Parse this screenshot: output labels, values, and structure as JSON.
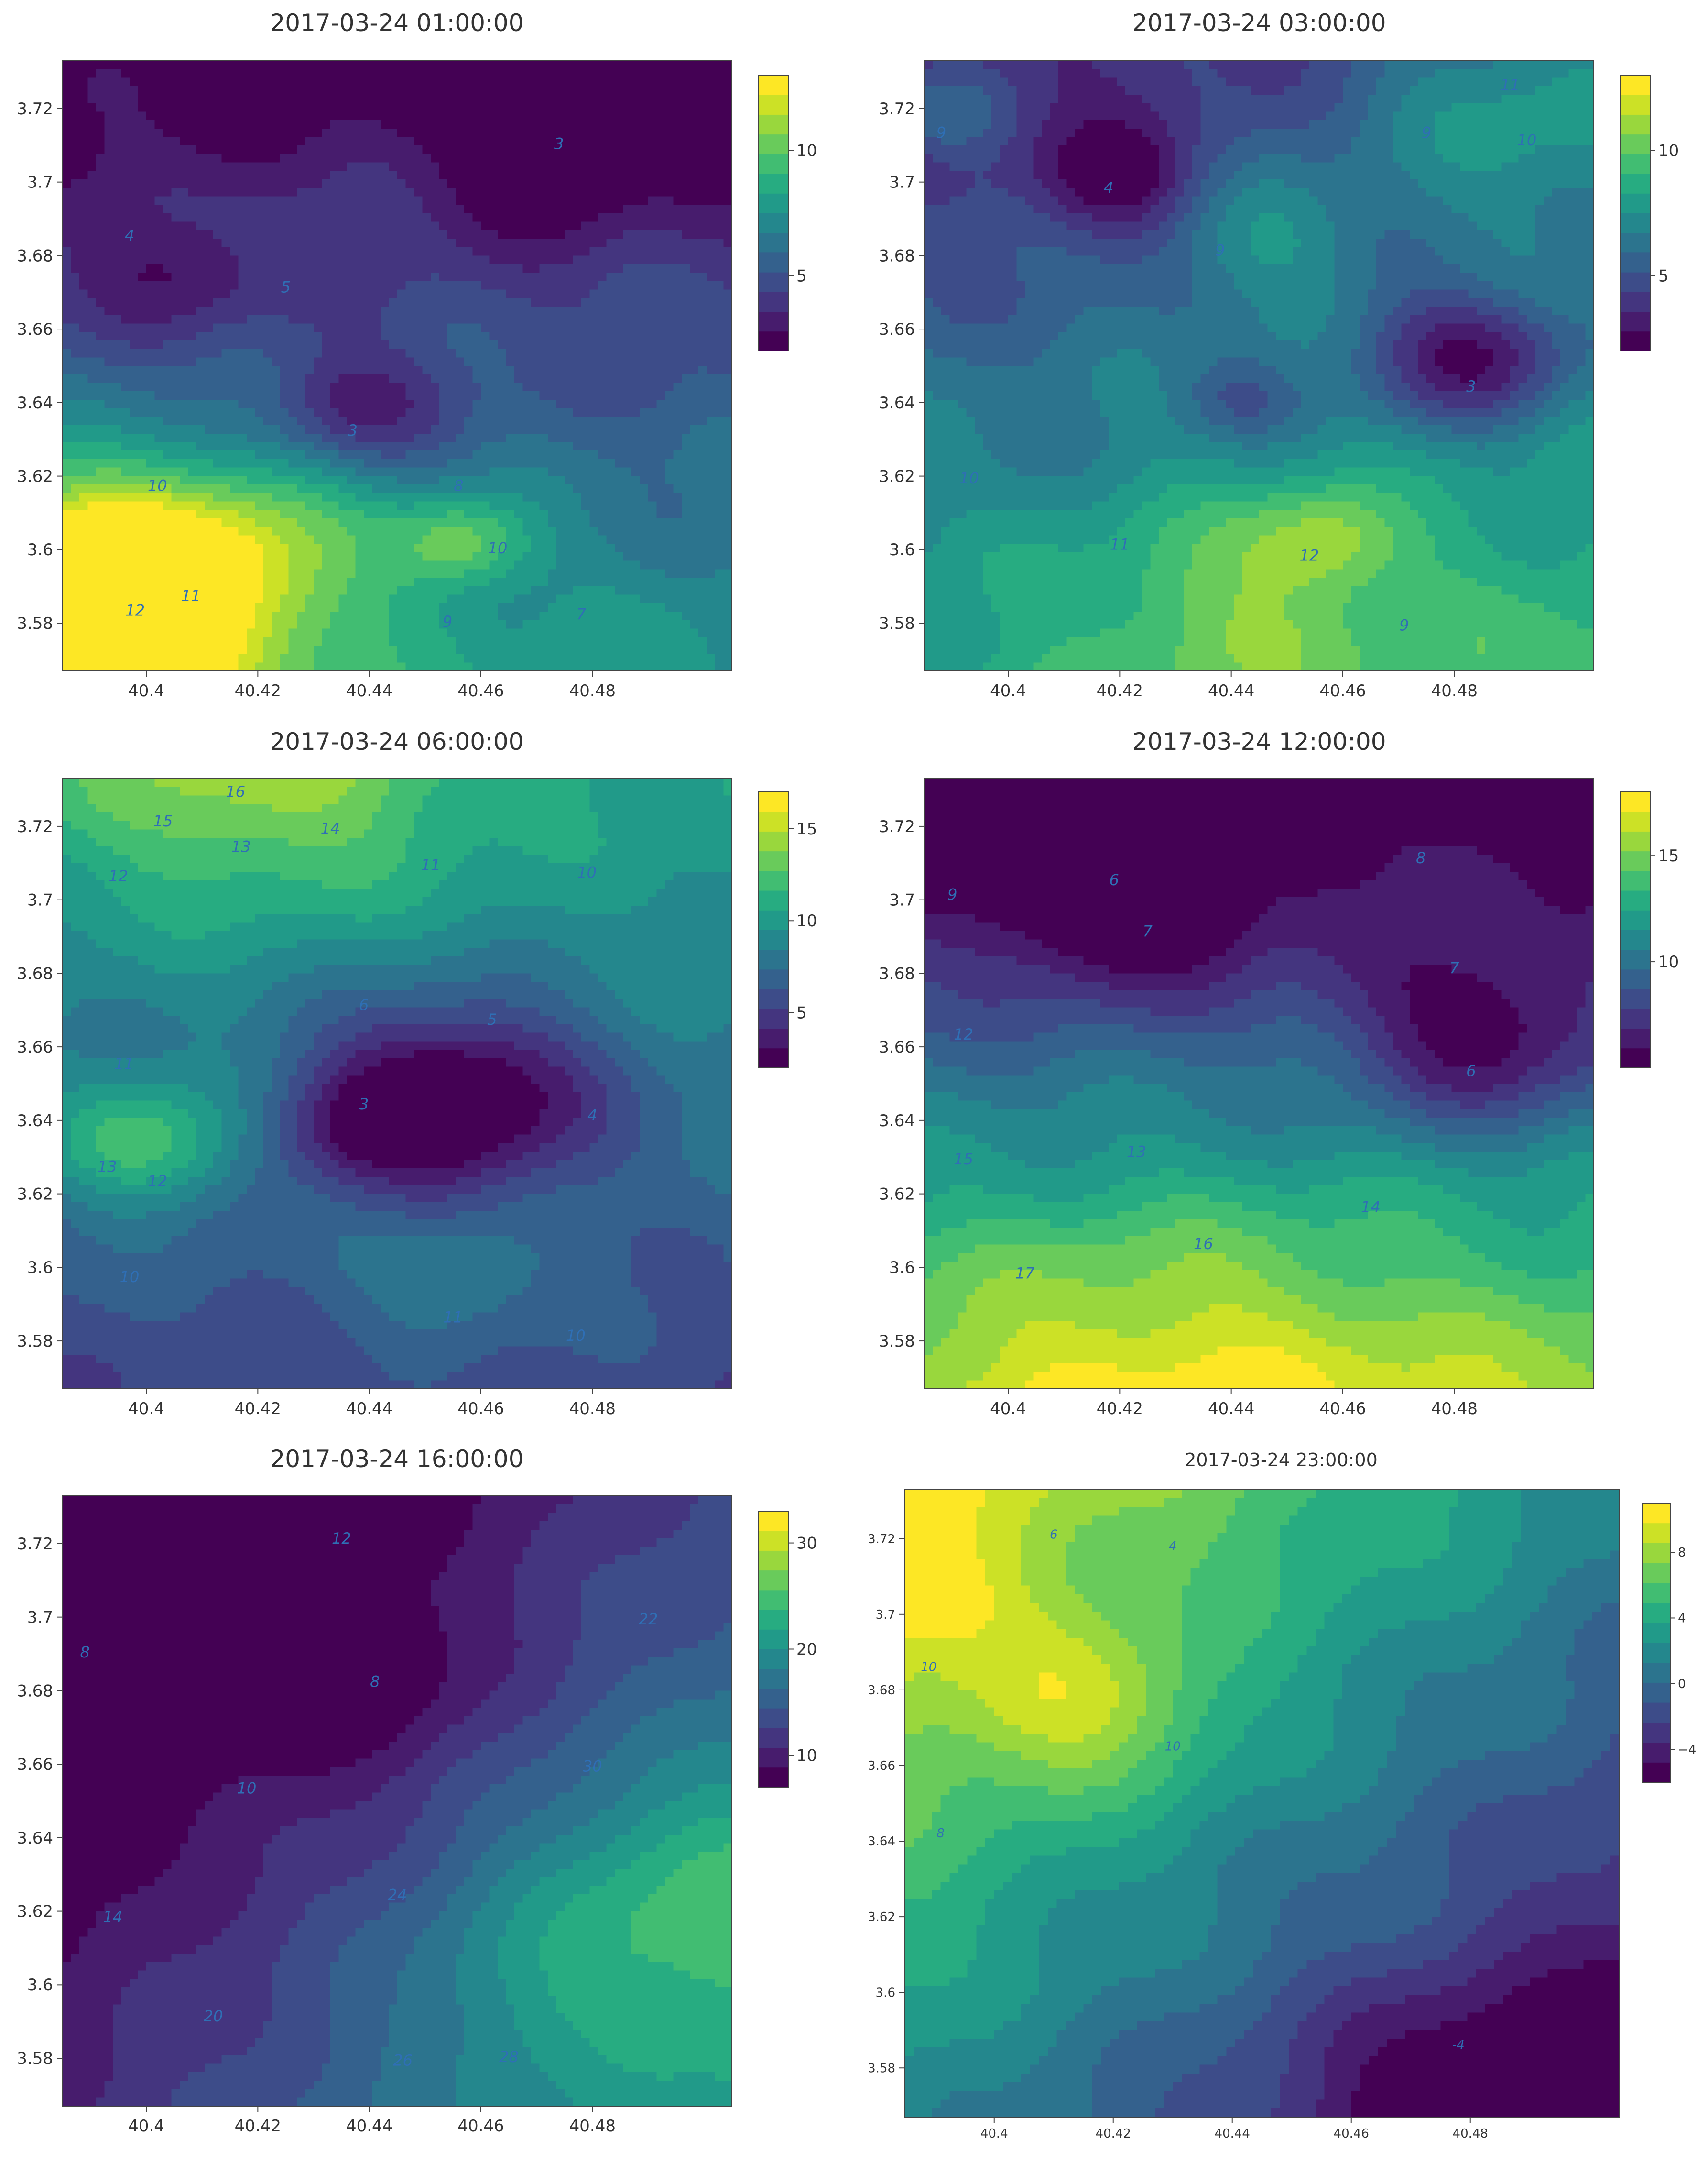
{
  "colormap": [
    "#440154",
    "#482475",
    "#414487",
    "#355f8d",
    "#2a788e",
    "#21918c",
    "#22a884",
    "#44bf70",
    "#7ad151",
    "#bddf26",
    "#fde725"
  ],
  "chart_data": [
    {
      "type": "contour",
      "title": "2017-03-24 01:00:00",
      "xlim": [
        40.385,
        40.505
      ],
      "ylim": [
        3.567,
        3.733
      ],
      "xticks": [
        40.4,
        40.42,
        40.44,
        40.46,
        40.48
      ],
      "yticks": [
        3.58,
        3.6,
        3.62,
        3.64,
        3.66,
        3.68,
        3.7,
        3.72
      ],
      "colorbar": {
        "min": 2,
        "max": 13,
        "ticks": [
          5,
          10
        ]
      },
      "base": 5.0,
      "ygrad": -35,
      "xgrad": 0,
      "features": [
        {
          "x": 40.386,
          "y": 3.585,
          "amp": 8.5,
          "s": 0.025
        },
        {
          "x": 40.457,
          "y": 3.602,
          "amp": 3.5,
          "s": 0.009
        },
        {
          "x": 40.415,
          "y": 3.6,
          "amp": 3.0,
          "s": 0.02
        },
        {
          "x": 40.473,
          "y": 3.706,
          "amp": -2.5,
          "s": 0.012
        },
        {
          "x": 40.437,
          "y": 3.638,
          "amp": -2.3,
          "s": 0.011
        },
        {
          "x": 40.408,
          "y": 3.676,
          "amp": -1.5,
          "s": 0.012
        },
        {
          "x": 40.425,
          "y": 3.683,
          "amp": 1.0,
          "s": 0.01
        }
      ],
      "labels": [
        {
          "x": 40.474,
          "y": 3.709,
          "text": "3"
        },
        {
          "x": 40.437,
          "y": 3.631,
          "text": "3"
        },
        {
          "x": 40.397,
          "y": 3.684,
          "text": "4"
        },
        {
          "x": 40.425,
          "y": 3.67,
          "text": "5"
        },
        {
          "x": 40.402,
          "y": 3.616,
          "text": "10"
        },
        {
          "x": 40.456,
          "y": 3.616,
          "text": "8"
        },
        {
          "x": 40.463,
          "y": 3.599,
          "text": "10"
        },
        {
          "x": 40.408,
          "y": 3.586,
          "text": "11"
        },
        {
          "x": 40.398,
          "y": 3.582,
          "text": "12"
        },
        {
          "x": 40.454,
          "y": 3.579,
          "text": "9"
        },
        {
          "x": 40.478,
          "y": 3.581,
          "text": "7"
        }
      ]
    },
    {
      "type": "contour",
      "title": "2017-03-24 03:00:00",
      "xlim": [
        40.385,
        40.505
      ],
      "ylim": [
        3.567,
        3.733
      ],
      "xticks": [
        40.4,
        40.42,
        40.44,
        40.46,
        40.48
      ],
      "yticks": [
        3.58,
        3.6,
        3.62,
        3.64,
        3.66,
        3.68,
        3.7,
        3.72
      ],
      "colorbar": {
        "min": 2,
        "max": 13,
        "ticks": [
          5,
          10
        ]
      },
      "base": 6.5,
      "ygrad": -30,
      "xgrad": 10,
      "features": [
        {
          "x": 40.457,
          "y": 3.603,
          "amp": 2.5,
          "s": 0.01
        },
        {
          "x": 40.44,
          "y": 3.586,
          "amp": 2.0,
          "s": 0.02
        },
        {
          "x": 40.483,
          "y": 3.652,
          "amp": -4.0,
          "s": 0.013
        },
        {
          "x": 40.419,
          "y": 3.7,
          "amp": -3.0,
          "s": 0.011
        },
        {
          "x": 40.442,
          "y": 3.641,
          "amp": -1.5,
          "s": 0.007
        },
        {
          "x": 40.445,
          "y": 3.685,
          "amp": 2.0,
          "s": 0.013
        },
        {
          "x": 40.388,
          "y": 3.718,
          "amp": 2.0,
          "s": 0.008
        },
        {
          "x": 40.495,
          "y": 3.725,
          "amp": 3.0,
          "s": 0.025
        }
      ],
      "labels": [
        {
          "x": 40.418,
          "y": 3.697,
          "text": "4"
        },
        {
          "x": 40.483,
          "y": 3.643,
          "text": "3"
        },
        {
          "x": 40.388,
          "y": 3.712,
          "text": "9"
        },
        {
          "x": 40.438,
          "y": 3.68,
          "text": "9"
        },
        {
          "x": 40.475,
          "y": 3.712,
          "text": "9"
        },
        {
          "x": 40.493,
          "y": 3.71,
          "text": "10"
        },
        {
          "x": 40.49,
          "y": 3.725,
          "text": "11"
        },
        {
          "x": 40.393,
          "y": 3.618,
          "text": "10"
        },
        {
          "x": 40.42,
          "y": 3.6,
          "text": "11"
        },
        {
          "x": 40.454,
          "y": 3.597,
          "text": "12"
        },
        {
          "x": 40.471,
          "y": 3.578,
          "text": "9"
        }
      ]
    },
    {
      "type": "contour",
      "title": "2017-03-24 06:00:00",
      "xlim": [
        40.385,
        40.505
      ],
      "ylim": [
        3.567,
        3.733
      ],
      "xticks": [
        40.4,
        40.42,
        40.44,
        40.46,
        40.48
      ],
      "yticks": [
        3.58,
        3.6,
        3.62,
        3.64,
        3.66,
        3.68,
        3.7,
        3.72
      ],
      "colorbar": {
        "min": 2,
        "max": 17,
        "ticks": [
          5,
          10,
          15
        ]
      },
      "base": 8.0,
      "ygrad": 30,
      "xgrad": 0,
      "features": [
        {
          "x": 40.455,
          "y": 3.647,
          "amp": -7.0,
          "s": 0.018
        },
        {
          "x": 40.437,
          "y": 3.638,
          "amp": -2.0,
          "s": 0.01
        },
        {
          "x": 40.4,
          "y": 3.633,
          "amp": 5.0,
          "s": 0.012
        },
        {
          "x": 40.455,
          "y": 3.596,
          "amp": 2.5,
          "s": 0.012
        },
        {
          "x": 40.42,
          "y": 3.733,
          "amp": 4.0,
          "s": 0.025
        }
      ],
      "labels": [
        {
          "x": 40.416,
          "y": 3.728,
          "text": "16"
        },
        {
          "x": 40.403,
          "y": 3.72,
          "text": "15"
        },
        {
          "x": 40.433,
          "y": 3.718,
          "text": "14"
        },
        {
          "x": 40.417,
          "y": 3.713,
          "text": "13"
        },
        {
          "x": 40.395,
          "y": 3.705,
          "text": "12"
        },
        {
          "x": 40.451,
          "y": 3.708,
          "text": "11"
        },
        {
          "x": 40.479,
          "y": 3.706,
          "text": "10"
        },
        {
          "x": 40.439,
          "y": 3.67,
          "text": "6"
        },
        {
          "x": 40.462,
          "y": 3.666,
          "text": "5"
        },
        {
          "x": 40.439,
          "y": 3.643,
          "text": "3"
        },
        {
          "x": 40.48,
          "y": 3.64,
          "text": "4"
        },
        {
          "x": 40.396,
          "y": 3.654,
          "text": "11"
        },
        {
          "x": 40.393,
          "y": 3.626,
          "text": "13"
        },
        {
          "x": 40.402,
          "y": 3.622,
          "text": "12"
        },
        {
          "x": 40.397,
          "y": 3.596,
          "text": "10"
        },
        {
          "x": 40.455,
          "y": 3.585,
          "text": "11"
        },
        {
          "x": 40.477,
          "y": 3.58,
          "text": "10"
        }
      ]
    },
    {
      "type": "contour",
      "title": "2017-03-24 12:00:00",
      "xlim": [
        40.385,
        40.505
      ],
      "ylim": [
        3.567,
        3.733
      ],
      "xticks": [
        40.4,
        40.42,
        40.44,
        40.46,
        40.48
      ],
      "yticks": [
        3.58,
        3.6,
        3.62,
        3.64,
        3.66,
        3.68,
        3.7,
        3.72
      ],
      "colorbar": {
        "min": 5,
        "max": 18,
        "ticks": [
          10,
          15
        ]
      },
      "base": 10.0,
      "ygrad": -70,
      "xgrad": 0,
      "features": [
        {
          "x": 40.421,
          "y": 3.702,
          "amp": -4.5,
          "s": 0.016
        },
        {
          "x": 40.485,
          "y": 3.662,
          "amp": -4.0,
          "s": 0.016
        },
        {
          "x": 40.43,
          "y": 3.58,
          "amp": 2.0,
          "s": 0.03
        }
      ],
      "labels": [
        {
          "x": 40.419,
          "y": 3.704,
          "text": "6"
        },
        {
          "x": 40.425,
          "y": 3.69,
          "text": "7"
        },
        {
          "x": 40.483,
          "y": 3.652,
          "text": "6"
        },
        {
          "x": 40.48,
          "y": 3.68,
          "text": "7"
        },
        {
          "x": 40.474,
          "y": 3.71,
          "text": "8"
        },
        {
          "x": 40.39,
          "y": 3.7,
          "text": "9"
        },
        {
          "x": 40.392,
          "y": 3.662,
          "text": "12"
        },
        {
          "x": 40.423,
          "y": 3.63,
          "text": "13"
        },
        {
          "x": 40.392,
          "y": 3.628,
          "text": "15"
        },
        {
          "x": 40.465,
          "y": 3.615,
          "text": "14"
        },
        {
          "x": 40.435,
          "y": 3.605,
          "text": "16"
        },
        {
          "x": 40.403,
          "y": 3.597,
          "text": "17"
        }
      ]
    },
    {
      "type": "contour",
      "title": "2017-03-24 16:00:00",
      "xlim": [
        40.385,
        40.505
      ],
      "ylim": [
        3.567,
        3.733
      ],
      "xticks": [
        40.4,
        40.42,
        40.44,
        40.46,
        40.48
      ],
      "yticks": [
        3.58,
        3.6,
        3.62,
        3.64,
        3.66,
        3.68,
        3.7,
        3.72
      ],
      "colorbar": {
        "min": 7,
        "max": 33,
        "ticks": [
          10,
          20,
          30
        ]
      },
      "base": 12.0,
      "ygrad": -50,
      "xgrad": 90,
      "features": [
        {
          "x": 40.435,
          "y": 3.682,
          "amp": -4.0,
          "s": 0.018
        },
        {
          "x": 40.5,
          "y": 3.625,
          "amp": 6.0,
          "s": 0.025
        },
        {
          "x": 40.47,
          "y": 3.6,
          "amp": 3.0,
          "s": 0.02
        }
      ],
      "labels": [
        {
          "x": 40.435,
          "y": 3.72,
          "text": "12"
        },
        {
          "x": 40.389,
          "y": 3.689,
          "text": "8"
        },
        {
          "x": 40.441,
          "y": 3.681,
          "text": "8"
        },
        {
          "x": 40.418,
          "y": 3.652,
          "text": "10"
        },
        {
          "x": 40.394,
          "y": 3.617,
          "text": "14"
        },
        {
          "x": 40.49,
          "y": 3.698,
          "text": "22"
        },
        {
          "x": 40.48,
          "y": 3.658,
          "text": "30"
        },
        {
          "x": 40.445,
          "y": 3.623,
          "text": "24"
        },
        {
          "x": 40.446,
          "y": 3.578,
          "text": "26"
        },
        {
          "x": 40.465,
          "y": 3.579,
          "text": "28"
        },
        {
          "x": 40.412,
          "y": 3.59,
          "text": "20"
        }
      ]
    },
    {
      "type": "contour",
      "title": "2017-03-24 23:00:00",
      "xlim": [
        40.385,
        40.505
      ],
      "ylim": [
        3.567,
        3.733
      ],
      "xticks": [
        40.4,
        40.42,
        40.44,
        40.46,
        40.48
      ],
      "yticks": [
        3.58,
        3.6,
        3.62,
        3.64,
        3.66,
        3.68,
        3.7,
        3.72
      ],
      "colorbar": {
        "min": -6,
        "max": 11,
        "ticks": [
          -4,
          0,
          4,
          8
        ]
      },
      "base": 2.0,
      "ygrad": 50,
      "xgrad": -70,
      "features": [
        {
          "x": 40.415,
          "y": 3.675,
          "amp": 4.0,
          "s": 0.015
        },
        {
          "x": 40.387,
          "y": 3.705,
          "amp": 3.0,
          "s": 0.01
        },
        {
          "x": 40.48,
          "y": 3.572,
          "amp": -3.0,
          "s": 0.02
        }
      ],
      "labels": [
        {
          "x": 40.41,
          "y": 3.72,
          "text": "6"
        },
        {
          "x": 40.43,
          "y": 3.717,
          "text": "4"
        },
        {
          "x": 40.389,
          "y": 3.685,
          "text": "10"
        },
        {
          "x": 40.43,
          "y": 3.664,
          "text": "10"
        },
        {
          "x": 40.391,
          "y": 3.641,
          "text": "8"
        },
        {
          "x": 40.478,
          "y": 3.585,
          "text": "-4"
        }
      ]
    }
  ]
}
